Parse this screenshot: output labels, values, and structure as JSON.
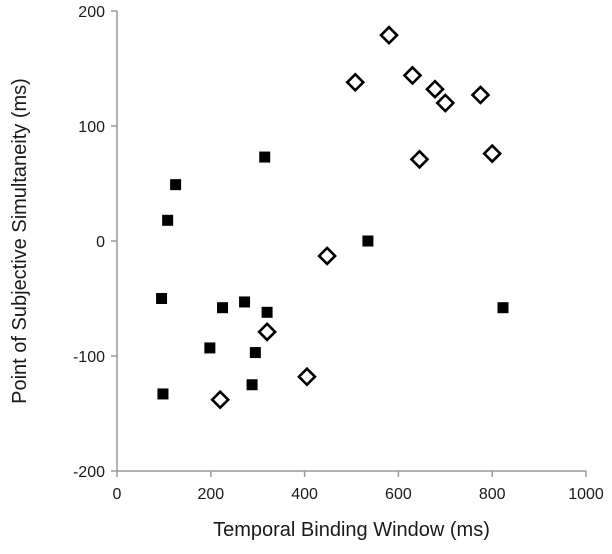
{
  "chart_data": {
    "type": "scatter",
    "title": "",
    "xlabel": "Temporal Binding Window (ms)",
    "ylabel": "Point of Subjective Simultaneity (ms)",
    "xlim": [
      0,
      1000
    ],
    "ylim": [
      -200,
      200
    ],
    "xticks": [
      0,
      200,
      400,
      600,
      800,
      1000
    ],
    "yticks": [
      -200,
      -100,
      0,
      100,
      200
    ],
    "xtick_labels": [
      "0",
      "200",
      "400",
      "600",
      "800",
      "1000"
    ],
    "ytick_labels": [
      "-200",
      "-100",
      "0",
      "100",
      "200"
    ],
    "grid": false,
    "legend": "none",
    "series": [
      {
        "marker": "filled-square",
        "color": "#000000",
        "points": [
          {
            "x": 125,
            "y": 49
          },
          {
            "x": 108,
            "y": 18
          },
          {
            "x": 315,
            "y": 73
          },
          {
            "x": 95,
            "y": -50
          },
          {
            "x": 225,
            "y": -58
          },
          {
            "x": 272,
            "y": -53
          },
          {
            "x": 320,
            "y": -62
          },
          {
            "x": 198,
            "y": -93
          },
          {
            "x": 295,
            "y": -97
          },
          {
            "x": 288,
            "y": -125
          },
          {
            "x": 98,
            "y": -133
          },
          {
            "x": 535,
            "y": 0
          },
          {
            "x": 823,
            "y": -58
          }
        ]
      },
      {
        "marker": "open-diamond",
        "color": "#000000",
        "points": [
          {
            "x": 580,
            "y": 179
          },
          {
            "x": 508,
            "y": 138
          },
          {
            "x": 630,
            "y": 144
          },
          {
            "x": 678,
            "y": 132
          },
          {
            "x": 700,
            "y": 120
          },
          {
            "x": 775,
            "y": 127
          },
          {
            "x": 645,
            "y": 71
          },
          {
            "x": 800,
            "y": 76
          },
          {
            "x": 448,
            "y": -13
          },
          {
            "x": 320,
            "y": -79
          },
          {
            "x": 405,
            "y": -118
          },
          {
            "x": 220,
            "y": -138
          }
        ]
      }
    ]
  }
}
